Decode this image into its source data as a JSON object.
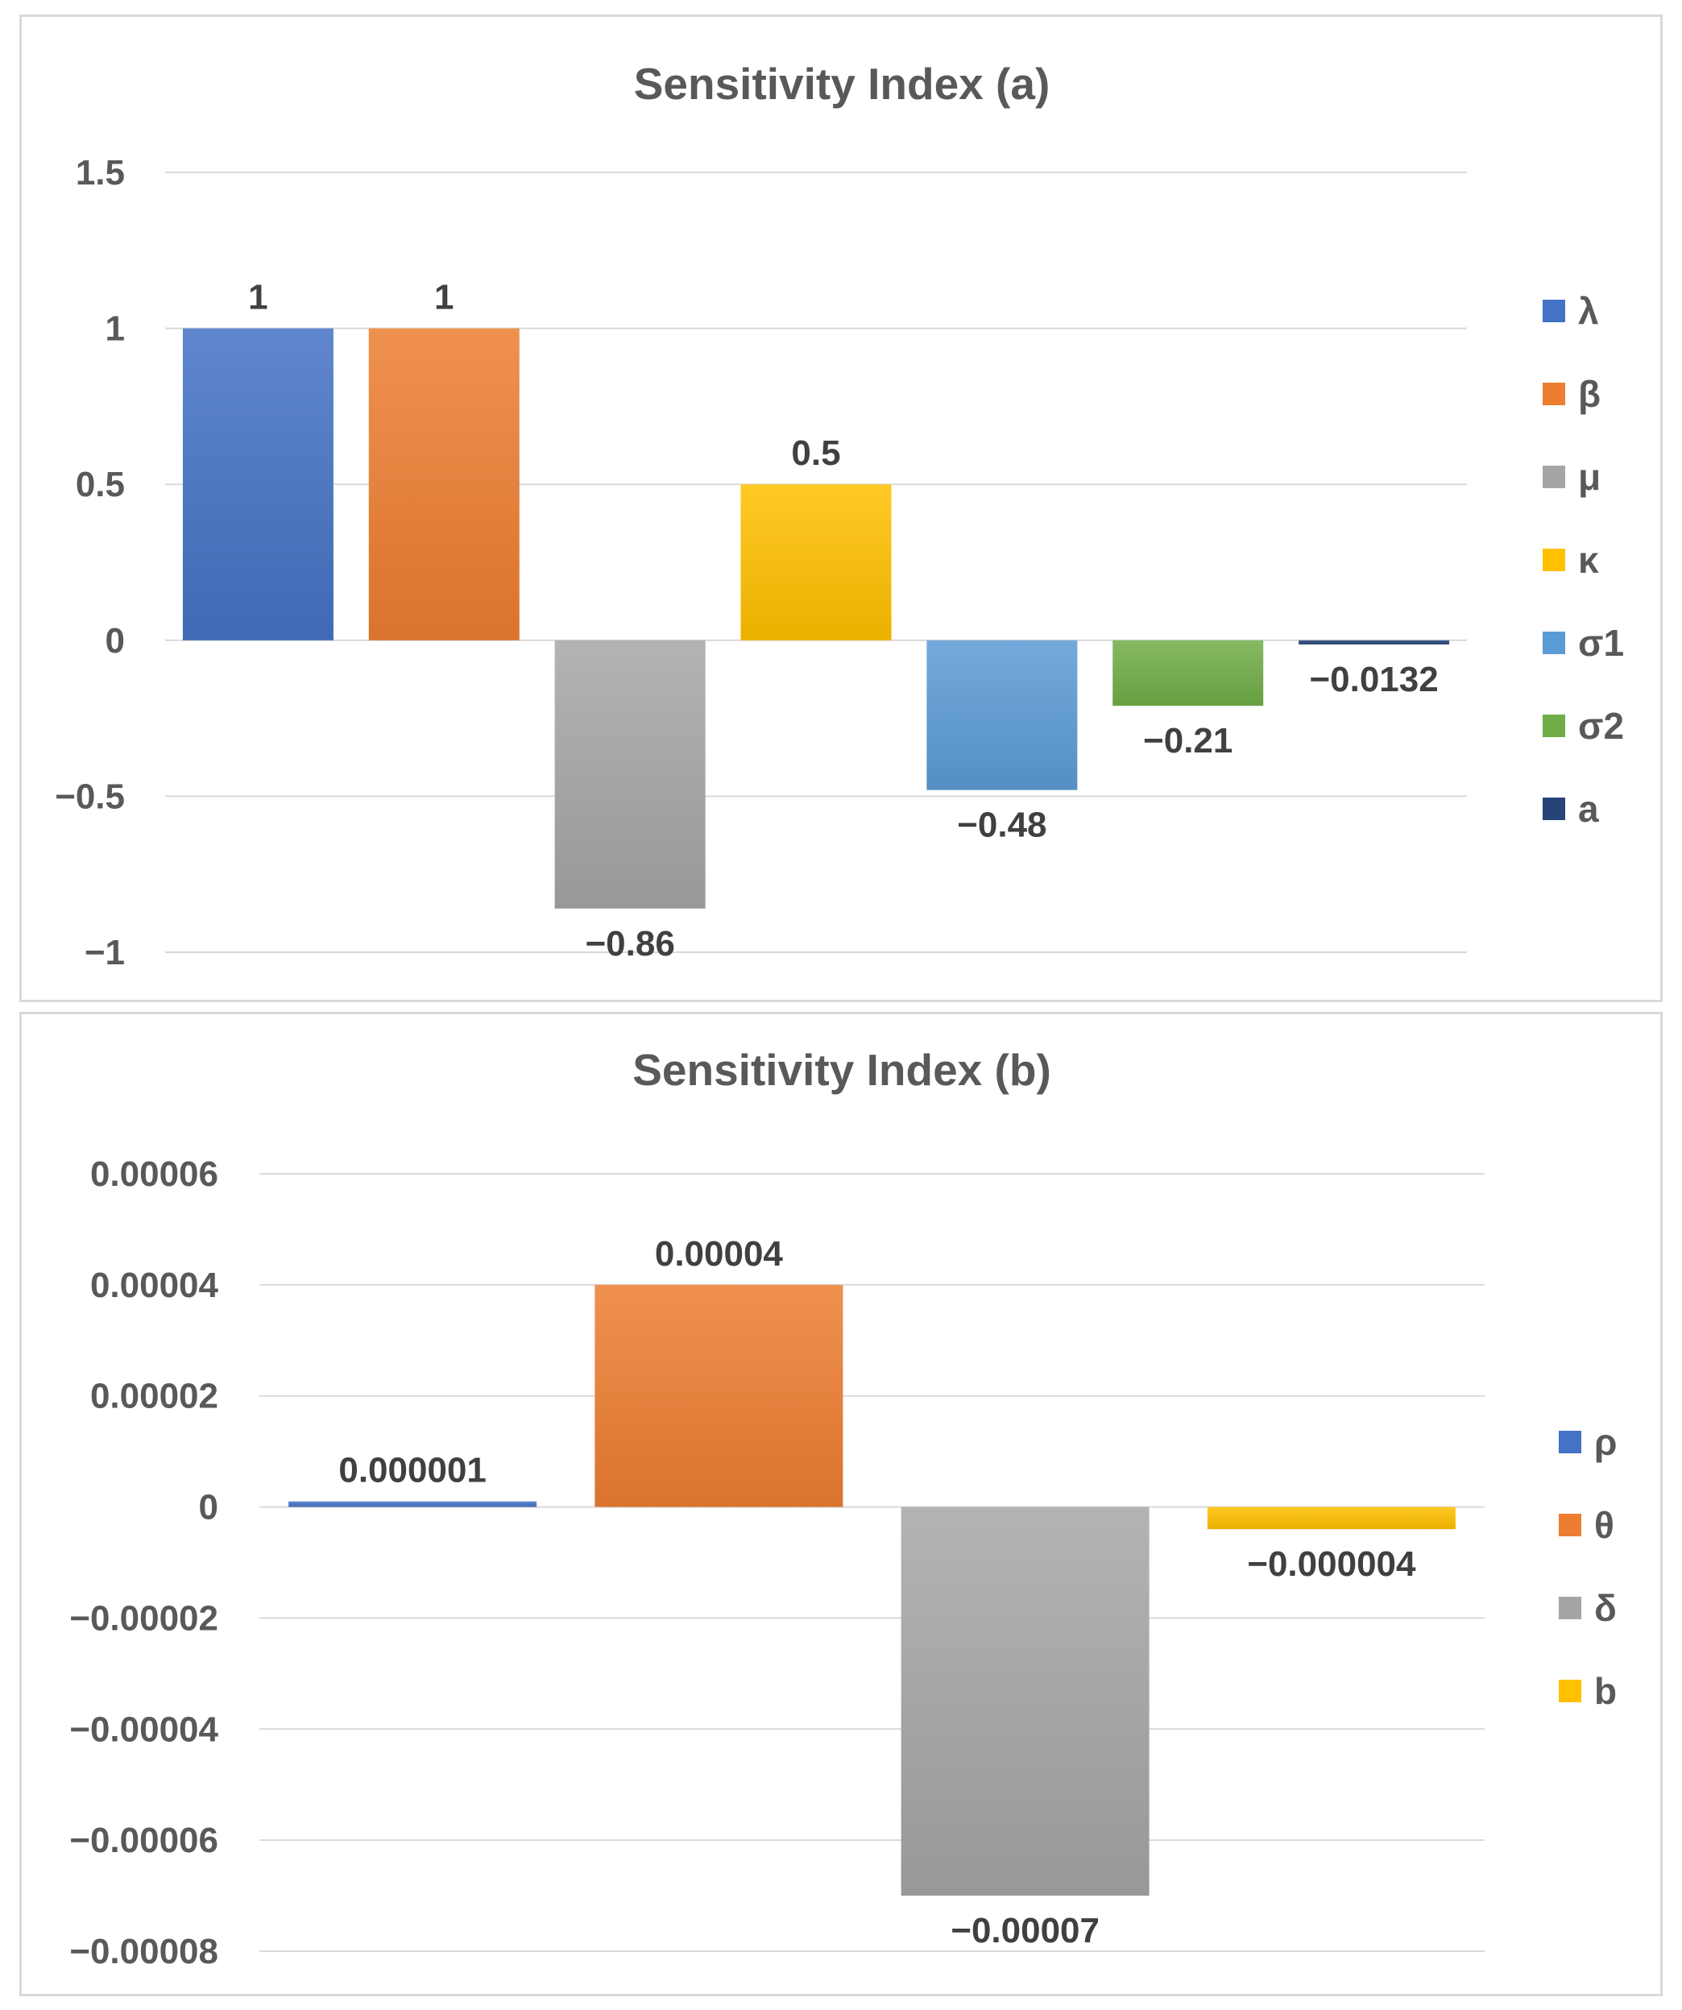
{
  "chart_data": [
    {
      "type": "bar",
      "title": "Sensitivity Index (a)",
      "xlabel": "",
      "ylabel": "",
      "ylim": [
        -1,
        1.5
      ],
      "ticks": [
        1.5,
        1,
        0.5,
        0,
        -0.5,
        -1
      ],
      "tick_labels": [
        "1.5",
        "1",
        "0.5",
        "0",
        "−0.5",
        "−1"
      ],
      "grid": true,
      "legend_position": "right",
      "categories": [
        "λ",
        "β",
        "μ",
        "κ",
        "σ1",
        "σ2",
        "a"
      ],
      "values": [
        1,
        1,
        -0.86,
        0.5,
        -0.48,
        -0.21,
        -0.0132
      ],
      "data_labels": [
        "1",
        "1",
        "−0.86",
        "0.5",
        "−0.48",
        "−0.21",
        "−0.0132"
      ],
      "colors": [
        "#4472c4",
        "#ed7d31",
        "#a5a5a5",
        "#ffc000",
        "#5b9bd5",
        "#70ad47",
        "#264478"
      ]
    },
    {
      "type": "bar",
      "title": "Sensitivity Index (b)",
      "xlabel": "",
      "ylabel": "",
      "ylim": [
        -8e-05,
        6e-05
      ],
      "ticks": [
        6e-05,
        4e-05,
        2e-05,
        0,
        -2e-05,
        -4e-05,
        -6e-05,
        -8e-05
      ],
      "tick_labels": [
        "0.00006",
        "0.00004",
        "0.00002",
        "0",
        "−0.00002",
        "−0.00004",
        "−0.00006",
        "−0.00008"
      ],
      "grid": true,
      "legend_position": "right",
      "categories": [
        "ρ",
        "θ",
        "δ",
        "b"
      ],
      "values": [
        1e-06,
        4e-05,
        -7e-05,
        -4e-06
      ],
      "data_labels": [
        "0.000001",
        "0.00004",
        "−0.00007",
        "−0.000004"
      ],
      "colors": [
        "#4472c4",
        "#ed7d31",
        "#a5a5a5",
        "#ffc000"
      ]
    }
  ]
}
